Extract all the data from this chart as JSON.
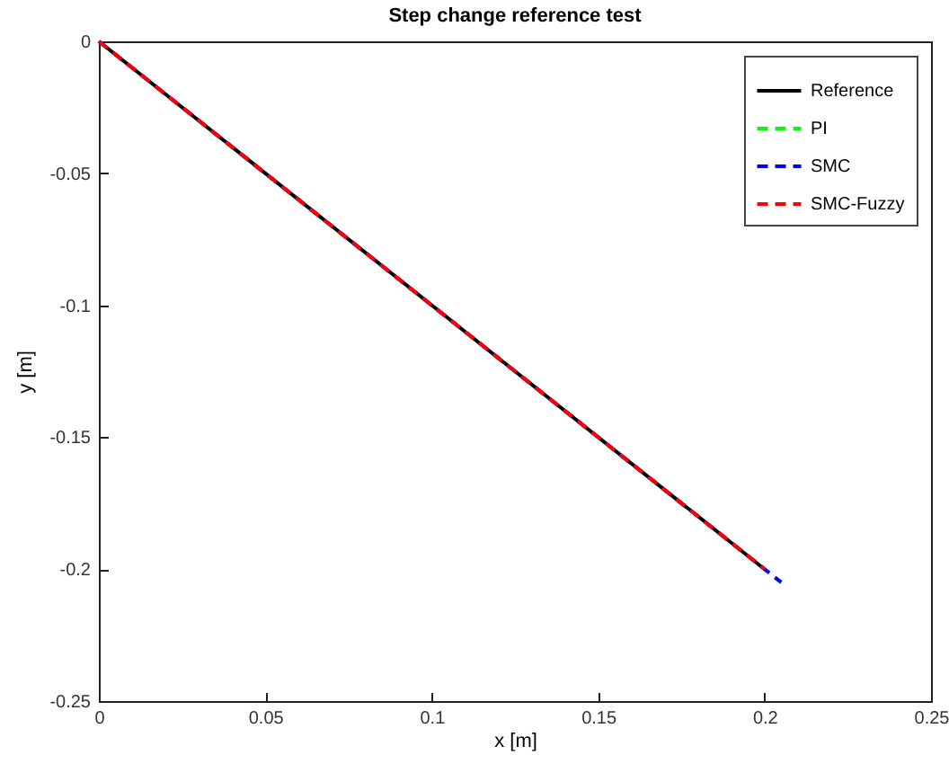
{
  "chart_data": {
    "type": "line",
    "title": "Step change reference test",
    "xlabel": "x [m]",
    "ylabel": "y [m]",
    "xlim": [
      0,
      0.25
    ],
    "xticks": [
      0,
      0.05,
      0.1,
      0.15,
      0.2,
      0.25
    ],
    "ylim": [
      -0.25,
      0
    ],
    "yticks": [
      -0.25,
      -0.2,
      -0.15,
      -0.1,
      -0.05,
      0
    ],
    "grid": false,
    "legend": "top right",
    "marker": "none",
    "series": [
      {
        "name": "Reference",
        "color": "#000000",
        "line_style": "solid",
        "x": [
          0,
          0.2
        ],
        "values": [
          0,
          -0.2
        ]
      },
      {
        "name": "PI",
        "color": "#00ff00",
        "line_style": "dashed",
        "values": [
          null,
          null
        ]
      },
      {
        "name": "SMC",
        "color": "#0000ff",
        "line_style": "dashed",
        "x": [
          0,
          0.205
        ],
        "values": [
          0,
          -0.205
        ]
      },
      {
        "name": "SMC-Fuzzy",
        "color": "#ff0000",
        "line_style": "dashed",
        "x": [
          0,
          0.2
        ],
        "values": [
          0,
          -0.2
        ]
      }
    ]
  }
}
